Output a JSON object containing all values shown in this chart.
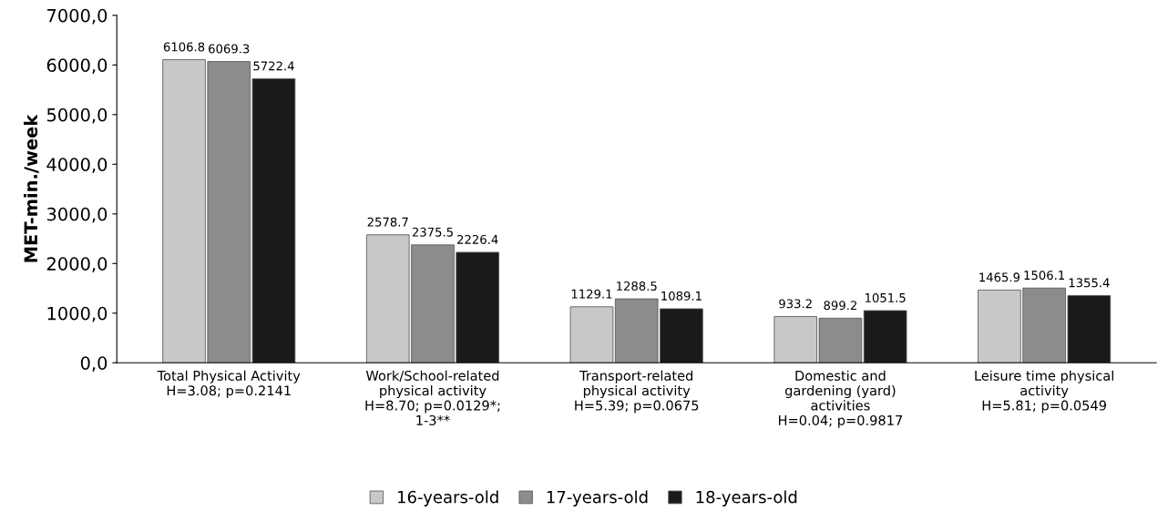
{
  "chart_data": {
    "type": "bar",
    "ylabel": "MET-min./week",
    "categories": [
      "Total Physical Activity\nH=3.08; p=0.2141",
      "Work/School-related\nphysical activity\nH=8.70; p=0.0129*;\n1-3**",
      "Transport-related\nphysical activity\nH=5.39; p=0.0675",
      "Domestic and\ngardening (yard)\nactivities\nH=0.04; p=0.9817",
      "Leisure time physical\nactivity\nH=5.81; p=0.0549"
    ],
    "series": [
      {
        "name": "16-years-old",
        "color": "#c8c8c8",
        "values": [
          6106.8,
          2578.7,
          1129.1,
          933.2,
          1465.9
        ]
      },
      {
        "name": "17-years-old",
        "color": "#8c8c8c",
        "values": [
          6069.3,
          2375.5,
          1288.5,
          899.2,
          1506.1
        ]
      },
      {
        "name": "18-years-old",
        "color": "#1a1a1a",
        "values": [
          5722.4,
          2226.4,
          1089.1,
          1051.5,
          1355.4
        ]
      }
    ],
    "ylim": [
      0,
      7000
    ],
    "yticks": [
      {
        "value": 0,
        "label": "0,0"
      },
      {
        "value": 1000,
        "label": "1000,0"
      },
      {
        "value": 2000,
        "label": "2000,0"
      },
      {
        "value": 3000,
        "label": "3000,0"
      },
      {
        "value": 4000,
        "label": "4000,0"
      },
      {
        "value": 5000,
        "label": "5000,0"
      },
      {
        "value": 6000,
        "label": "6000,0"
      },
      {
        "value": 7000,
        "label": "7000,0"
      }
    ],
    "data_labels": true,
    "legend": "bottom",
    "grid": false
  }
}
